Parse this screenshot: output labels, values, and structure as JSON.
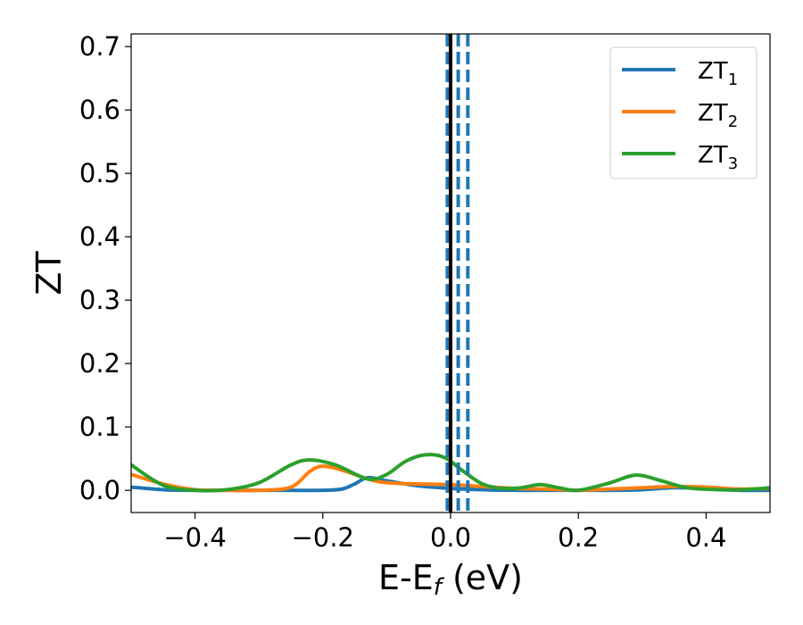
{
  "chart_data": {
    "type": "line",
    "xlabel": "E-E",
    "xlabel_sub": "f",
    "xlabel_unit": " (eV)",
    "ylabel": "ZT",
    "xlim": [
      -0.5,
      0.5
    ],
    "ylim": [
      -0.035,
      0.72
    ],
    "grid": false,
    "legend_position": "top-right",
    "x_ticks": [
      {
        "value": -0.4,
        "label": "−0.4"
      },
      {
        "value": -0.2,
        "label": "−0.2"
      },
      {
        "value": 0.0,
        "label": "0.0"
      },
      {
        "value": 0.2,
        "label": "0.2"
      },
      {
        "value": 0.4,
        "label": "0.4"
      }
    ],
    "y_ticks": [
      {
        "value": 0.0,
        "label": "0.0"
      },
      {
        "value": 0.1,
        "label": "0.1"
      },
      {
        "value": 0.2,
        "label": "0.2"
      },
      {
        "value": 0.3,
        "label": "0.3"
      },
      {
        "value": 0.4,
        "label": "0.4"
      },
      {
        "value": 0.5,
        "label": "0.5"
      },
      {
        "value": 0.6,
        "label": "0.6"
      },
      {
        "value": 0.7,
        "label": "0.7"
      }
    ],
    "series": [
      {
        "name": "ZT",
        "name_sub": "1",
        "color": "#1f77b4",
        "x": [
          -0.5,
          -0.45,
          -0.4,
          -0.35,
          -0.3,
          -0.25,
          -0.2,
          -0.17,
          -0.15,
          -0.13,
          -0.1,
          -0.05,
          0.0,
          0.05,
          0.1,
          0.15,
          0.2,
          0.25,
          0.3,
          0.35,
          0.4,
          0.45,
          0.5
        ],
        "y": [
          0.005,
          0.001,
          0.0,
          0.0,
          0.0,
          0.0,
          0.0,
          0.002,
          0.01,
          0.02,
          0.015,
          0.007,
          0.003,
          0.001,
          0.0,
          0.0,
          0.0,
          0.0,
          0.001,
          0.004,
          0.003,
          0.0,
          0.0
        ]
      },
      {
        "name": "ZT",
        "name_sub": "2",
        "color": "#ff7f0e",
        "x": [
          -0.5,
          -0.45,
          -0.4,
          -0.35,
          -0.3,
          -0.25,
          -0.22,
          -0.2,
          -0.17,
          -0.13,
          -0.1,
          -0.05,
          0.0,
          0.05,
          0.1,
          0.15,
          0.2,
          0.25,
          0.3,
          0.35,
          0.4,
          0.45,
          0.5
        ],
        "y": [
          0.025,
          0.01,
          0.001,
          0.0,
          0.0,
          0.005,
          0.03,
          0.038,
          0.032,
          0.018,
          0.012,
          0.01,
          0.009,
          0.006,
          0.003,
          0.002,
          0.0,
          0.002,
          0.004,
          0.006,
          0.005,
          0.002,
          0.003
        ]
      },
      {
        "name": "ZT",
        "name_sub": "3",
        "color": "#2ca02c",
        "x": [
          -0.5,
          -0.45,
          -0.4,
          -0.35,
          -0.3,
          -0.25,
          -0.22,
          -0.18,
          -0.13,
          -0.1,
          -0.07,
          -0.04,
          -0.01,
          0.02,
          0.05,
          0.08,
          0.11,
          0.14,
          0.17,
          0.2,
          0.25,
          0.29,
          0.33,
          0.37,
          0.42,
          0.46,
          0.5
        ],
        "y": [
          0.04,
          0.008,
          0.0,
          0.001,
          0.012,
          0.04,
          0.048,
          0.04,
          0.018,
          0.025,
          0.046,
          0.056,
          0.052,
          0.03,
          0.01,
          0.003,
          0.004,
          0.009,
          0.004,
          0.0,
          0.012,
          0.024,
          0.015,
          0.004,
          0.001,
          0.001,
          0.004
        ]
      }
    ],
    "vertical_lines": [
      {
        "x": -0.005,
        "color": "#1f77b4",
        "style": "dashed"
      },
      {
        "x": 0.0,
        "color": "#000000",
        "style": "solid"
      },
      {
        "x": 0.012,
        "color": "#1f77b4",
        "style": "dashed"
      },
      {
        "x": 0.027,
        "color": "#1f77b4",
        "style": "dashed"
      }
    ]
  }
}
